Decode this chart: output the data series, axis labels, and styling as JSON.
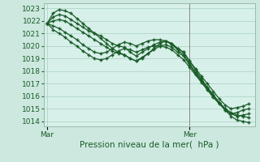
{
  "background_color": "#cce8df",
  "plot_bg_color": "#d8f0ea",
  "grid_color": "#a8cfc0",
  "line_color": "#1a5c28",
  "marker": "+",
  "markersize": 3.5,
  "markeredgewidth": 1.0,
  "linewidth": 0.9,
  "xlabel": "Pression niveau de la mer(  hPa )",
  "xlabel_fontsize": 7.5,
  "tick_fontsize": 6.5,
  "yticks": [
    1014,
    1015,
    1016,
    1017,
    1018,
    1019,
    1020,
    1021,
    1022,
    1023
  ],
  "ylim": [
    1013.6,
    1023.4
  ],
  "xtick_labels": [
    "Mar",
    "Mer"
  ],
  "xtick_positions": [
    0,
    24
  ],
  "xlim": [
    -0.5,
    35
  ],
  "vline_x": 24,
  "vline_color": "#888888",
  "series": [
    [
      1021.8,
      1022.3,
      1022.5,
      1022.4,
      1022.1,
      1021.8,
      1021.5,
      1021.2,
      1021.0,
      1020.8,
      1020.5,
      1020.2,
      1020.0,
      1019.9,
      1019.5,
      1019.2,
      1019.5,
      1019.8,
      1020.1,
      1020.3,
      1020.4,
      1020.2,
      1019.8,
      1019.5,
      1018.8,
      1018.2,
      1017.6,
      1017.0,
      1016.4,
      1015.8,
      1015.3,
      1015.0,
      1015.1,
      1015.2,
      1015.4
    ],
    [
      1021.8,
      1022.0,
      1022.1,
      1022.0,
      1021.7,
      1021.4,
      1021.1,
      1020.8,
      1020.5,
      1020.2,
      1019.9,
      1019.6,
      1019.4,
      1019.3,
      1019.0,
      1018.8,
      1019.1,
      1019.4,
      1019.7,
      1020.0,
      1020.1,
      1019.9,
      1019.5,
      1019.2,
      1018.5,
      1017.8,
      1017.2,
      1016.6,
      1016.0,
      1015.5,
      1015.0,
      1014.7,
      1014.5,
      1014.4,
      1014.3
    ],
    [
      1021.8,
      1022.6,
      1022.9,
      1022.8,
      1022.6,
      1022.2,
      1021.8,
      1021.4,
      1021.0,
      1020.6,
      1020.2,
      1019.8,
      1019.5,
      1019.3,
      1019.0,
      1018.8,
      1019.0,
      1019.4,
      1019.8,
      1020.2,
      1020.4,
      1020.2,
      1019.8,
      1019.5,
      1018.8,
      1018.1,
      1017.4,
      1016.7,
      1016.1,
      1015.5,
      1014.9,
      1014.4,
      1014.1,
      1014.0,
      1013.9
    ],
    [
      1021.8,
      1021.6,
      1021.4,
      1021.1,
      1020.8,
      1020.5,
      1020.1,
      1019.8,
      1019.5,
      1019.4,
      1019.5,
      1019.8,
      1020.1,
      1020.3,
      1020.2,
      1020.0,
      1020.2,
      1020.4,
      1020.5,
      1020.5,
      1020.4,
      1020.1,
      1019.7,
      1019.3,
      1018.6,
      1017.9,
      1017.3,
      1016.7,
      1016.1,
      1015.5,
      1015.0,
      1014.6,
      1014.4,
      1014.5,
      1014.6
    ],
    [
      1021.8,
      1021.3,
      1021.0,
      1020.7,
      1020.3,
      1020.0,
      1019.6,
      1019.3,
      1019.0,
      1018.9,
      1019.0,
      1019.3,
      1019.6,
      1019.8,
      1019.7,
      1019.5,
      1019.7,
      1019.9,
      1020.0,
      1020.0,
      1019.9,
      1019.7,
      1019.3,
      1018.9,
      1018.3,
      1017.7,
      1017.1,
      1016.5,
      1015.9,
      1015.4,
      1014.9,
      1014.6,
      1014.7,
      1014.9,
      1015.0
    ]
  ]
}
